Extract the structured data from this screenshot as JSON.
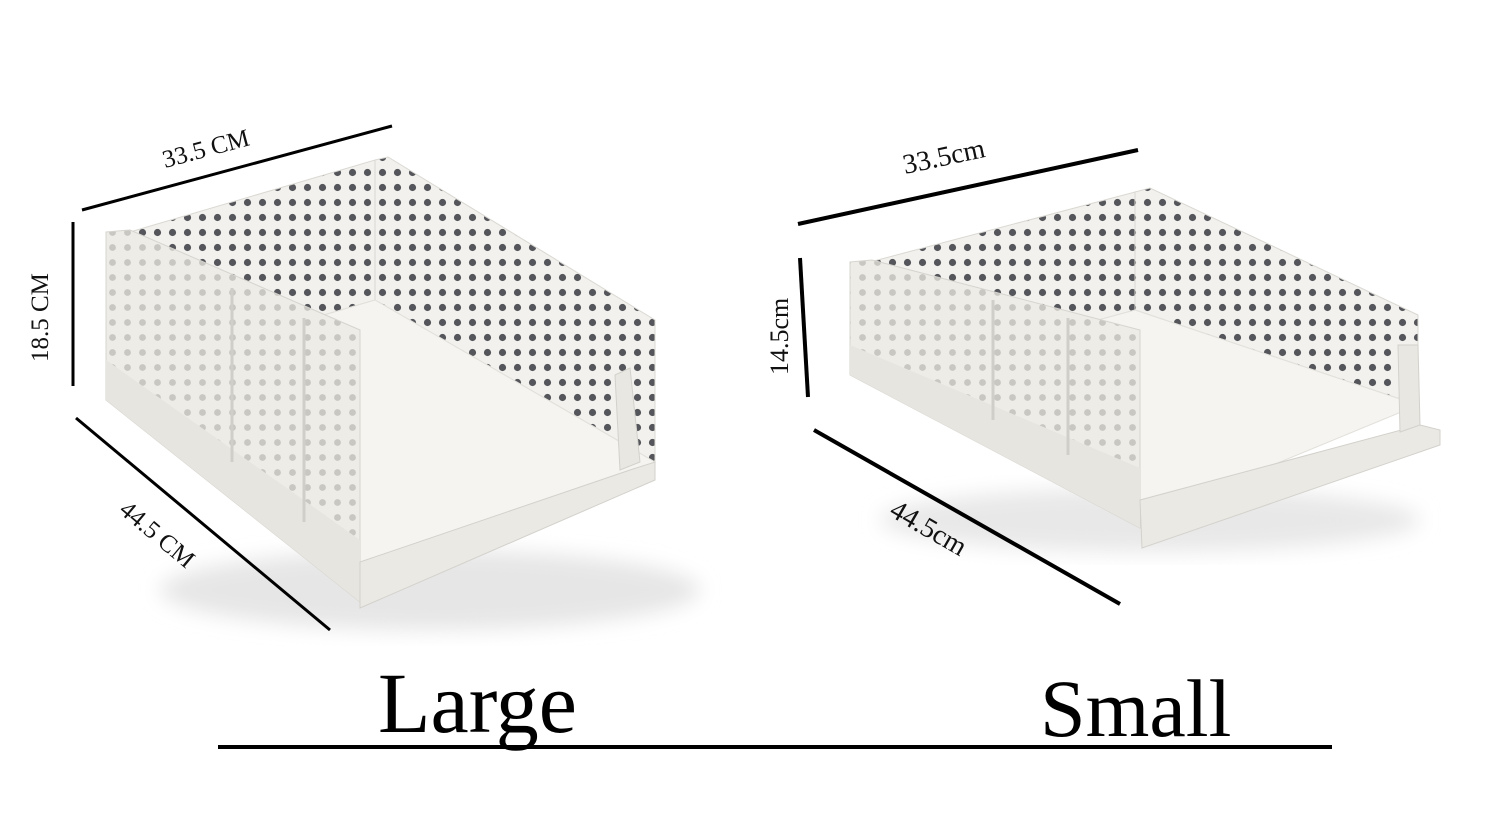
{
  "dimensions": {
    "large": {
      "width": "33.5 CM",
      "height": "18.5 CM",
      "depth": "44.5 CM"
    },
    "small": {
      "width": "33.5cm",
      "height": "14.5cm",
      "depth": "44.5cm"
    }
  },
  "labels": {
    "large": "Large",
    "small": "Small"
  },
  "colors": {
    "basket_light": "#f3f2ee",
    "basket_shade": "#dcdad4",
    "hole": "#5a5a5e",
    "line": "#000000"
  }
}
